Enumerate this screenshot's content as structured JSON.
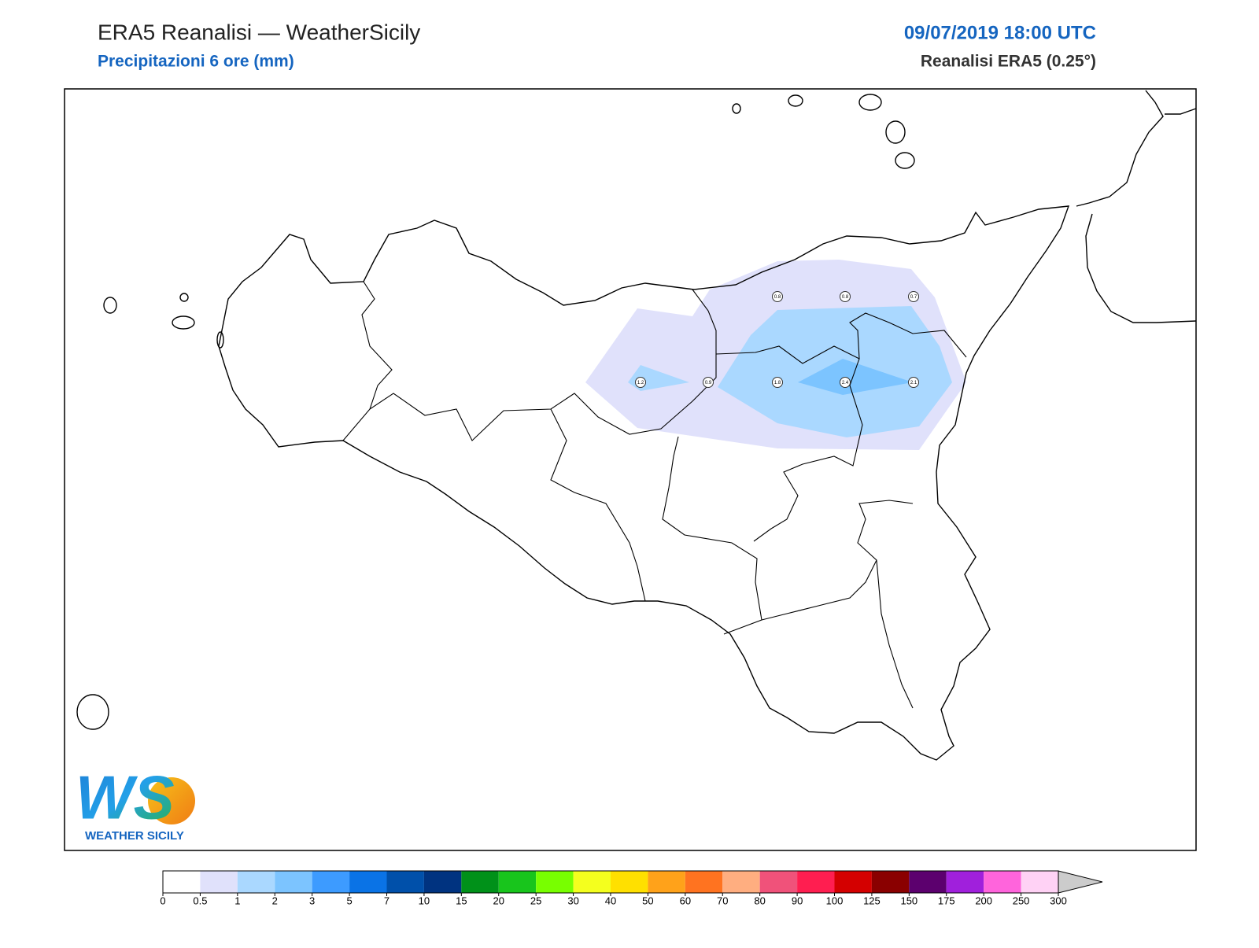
{
  "header": {
    "title": "ERA5 Reanalisi — WeatherSicily",
    "subtitle": "Precipitazioni 6 ore (mm)",
    "datetime": "09/07/2019 18:00 UTC",
    "source": "Reanalisi ERA5 (0.25°)"
  },
  "points": [
    0.8,
    0.8,
    0.7,
    1.2,
    0.9,
    1.8,
    2.4,
    2.1
  ],
  "logo": {
    "letters": "WS",
    "text": "WEATHER SICILY"
  },
  "colorbar": {
    "levels": [
      0,
      0.5,
      1,
      2,
      3,
      5,
      7,
      10,
      15,
      20,
      25,
      30,
      40,
      50,
      60,
      70,
      80,
      90,
      100,
      125,
      150,
      175,
      200,
      250,
      300
    ],
    "colors": [
      "#ffffff",
      "#e0e1fb",
      "#aad8ff",
      "#7cc4ff",
      "#3d9bff",
      "#0a73e6",
      "#0050aa",
      "#003380",
      "#009119",
      "#18c51c",
      "#78ff00",
      "#f4ff1e",
      "#ffe000",
      "#ffa21a",
      "#ff7320",
      "#ffae80",
      "#f0527a",
      "#ff1e50",
      "#d40000",
      "#8a0000",
      "#5c006e",
      "#a020dc",
      "#ff64dc",
      "#ffd2f5"
    ]
  }
}
